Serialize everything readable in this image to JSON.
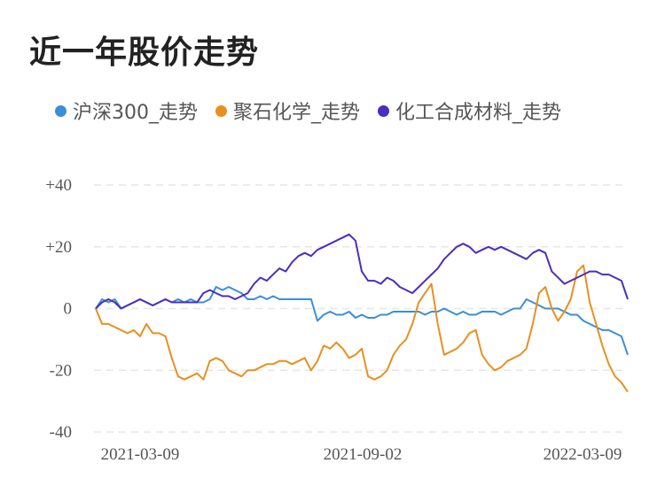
{
  "title": "近一年股价走势",
  "chart_data": {
    "type": "line",
    "title": "近一年股价走势",
    "xlabel": "",
    "ylabel": "",
    "x_ticks": [
      "2021-03-09",
      "2021-09-02",
      "2022-03-09"
    ],
    "y_ticks": [
      "+40",
      "+20",
      "0",
      "-20",
      "-40"
    ],
    "y_tick_values": [
      40,
      20,
      0,
      -20,
      -40
    ],
    "ylim": [
      -40,
      40
    ],
    "grid": true,
    "legend_position": "top",
    "series": [
      {
        "name": "沪深300_走势",
        "color": "#3a8fd9",
        "values": [
          0,
          3,
          2,
          3,
          0,
          1,
          2,
          3,
          2,
          1,
          2,
          3,
          2,
          3,
          2,
          3,
          2,
          2,
          3,
          7,
          6,
          7,
          6,
          5,
          3,
          3,
          4,
          3,
          4,
          3,
          3,
          3,
          3,
          3,
          3,
          -4,
          -2,
          -1,
          -2,
          -2,
          -1,
          -3,
          -2,
          -3,
          -3,
          -2,
          -2,
          -1,
          -1,
          -1,
          -1,
          -1,
          -2,
          -1,
          -1,
          0,
          -1,
          -2,
          -1,
          -2,
          -2,
          -1,
          -1,
          -1,
          -2,
          -1,
          0,
          0,
          3,
          2,
          1,
          0,
          0,
          0,
          -1,
          -2,
          -2,
          -4,
          -5,
          -6,
          -7,
          -7,
          -8,
          -9,
          -15
        ]
      },
      {
        "name": "聚石化学_走势",
        "color": "#e8901f",
        "values": [
          0,
          -5,
          -5,
          -6,
          -7,
          -8,
          -7,
          -9,
          -5,
          -8,
          -8,
          -9,
          -16,
          -22,
          -23,
          -22,
          -21,
          -23,
          -17,
          -16,
          -17,
          -20,
          -21,
          -22,
          -20,
          -20,
          -19,
          -18,
          -18,
          -17,
          -17,
          -18,
          -17,
          -16,
          -20,
          -17,
          -12,
          -13,
          -11,
          -13,
          -16,
          -15,
          -13,
          -22,
          -23,
          -22,
          -20,
          -15,
          -12,
          -10,
          -5,
          2,
          5,
          8,
          -5,
          -15,
          -14,
          -13,
          -11,
          -8,
          -7,
          -15,
          -18,
          -20,
          -19,
          -17,
          -16,
          -15,
          -13,
          -5,
          5,
          7,
          0,
          -4,
          -1,
          3,
          12,
          14,
          2,
          -5,
          -12,
          -18,
          -22,
          -24,
          -27
        ]
      },
      {
        "name": "化工合成材料_走势",
        "color": "#4b2dbf",
        "values": [
          0,
          2,
          3,
          2,
          0,
          1,
          2,
          3,
          2,
          1,
          2,
          3,
          2,
          2,
          2,
          2,
          2,
          5,
          6,
          5,
          4,
          4,
          3,
          4,
          5,
          8,
          10,
          9,
          11,
          13,
          12,
          15,
          17,
          18,
          17,
          19,
          20,
          21,
          22,
          23,
          24,
          22,
          12,
          9,
          9,
          8,
          10,
          9,
          7,
          6,
          5,
          7,
          9,
          11,
          13,
          16,
          18,
          20,
          21,
          20,
          18,
          19,
          20,
          19,
          20,
          19,
          18,
          17,
          16,
          18,
          19,
          18,
          12,
          10,
          8,
          9,
          10,
          11,
          12,
          12,
          11,
          11,
          10,
          9,
          3
        ]
      }
    ]
  }
}
